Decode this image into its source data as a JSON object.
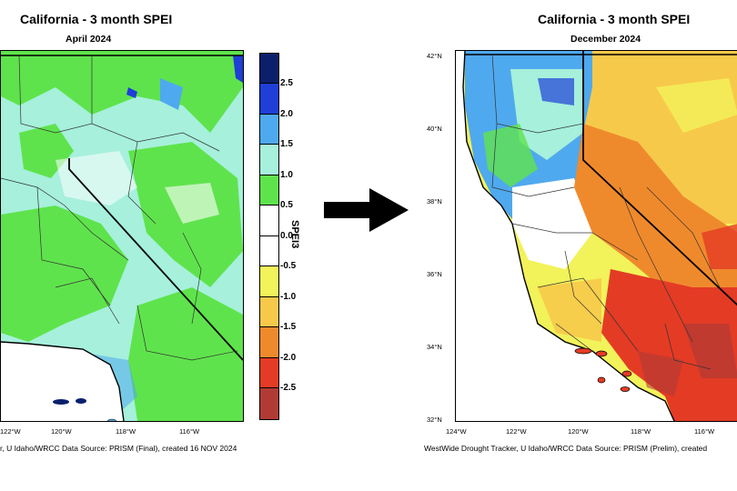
{
  "left_map": {
    "title": "California - 3 month SPEI",
    "subtitle": "April 2024",
    "lon_ticks": [
      "122°W",
      "120°W",
      "118°W",
      "116°W"
    ],
    "credit": "r, U Idaho/WRCC Data Source: PRISM (Final), created 16 NOV 2024"
  },
  "right_map": {
    "title": "California - 3 month SPEI",
    "subtitle": "December 2024",
    "lat_ticks": [
      "42°N",
      "40°N",
      "38°N",
      "36°N",
      "34°N",
      "32°N"
    ],
    "lon_ticks": [
      "124°W",
      "122°W",
      "120°W",
      "118°W",
      "116°W"
    ],
    "credit": "WestWide Drought Tracker, U Idaho/WRCC Data Source: PRISM (Prelim), created"
  },
  "legend": {
    "title": "SPEI3",
    "labels": [
      "2.5",
      "2.0",
      "1.5",
      "1.0",
      "0.5",
      "0.0",
      "-0.5",
      "-1.0",
      "-1.5",
      "-2.0",
      "-2.5"
    ],
    "colors": [
      "#0b1f6b",
      "#1f3fd6",
      "#4fa9ee",
      "#a6f0dc",
      "#5fe34c",
      "#ffffff",
      "#ffffff",
      "#f2f25a",
      "#f7c94a",
      "#ef8a2c",
      "#e43b25",
      "#b03b35"
    ]
  },
  "colors": {
    "wet_base": "#a6f0dc",
    "wet_green": "#5fe34c",
    "dry_yellow": "#f2f25a",
    "dry_orange": "#ef8a2c",
    "dry_red": "#e43b25"
  }
}
